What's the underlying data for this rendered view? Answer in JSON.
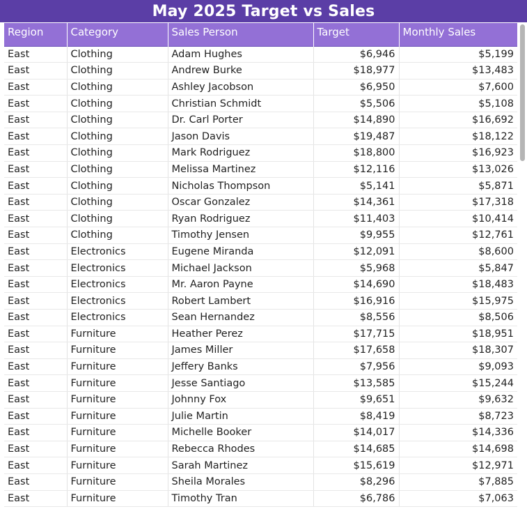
{
  "title": "May 2025 Target vs Sales",
  "columns": [
    "Region",
    "Category",
    "Sales Person",
    "Target",
    "Monthly Sales"
  ],
  "rows": [
    [
      "East",
      "Clothing",
      "Adam Hughes",
      "$6,946",
      "$5,199"
    ],
    [
      "East",
      "Clothing",
      "Andrew Burke",
      "$18,977",
      "$13,483"
    ],
    [
      "East",
      "Clothing",
      "Ashley Jacobson",
      "$6,950",
      "$7,600"
    ],
    [
      "East",
      "Clothing",
      "Christian Schmidt",
      "$5,506",
      "$5,108"
    ],
    [
      "East",
      "Clothing",
      "Dr. Carl Porter",
      "$14,890",
      "$16,692"
    ],
    [
      "East",
      "Clothing",
      "Jason Davis",
      "$19,487",
      "$18,122"
    ],
    [
      "East",
      "Clothing",
      "Mark Rodriguez",
      "$18,800",
      "$16,923"
    ],
    [
      "East",
      "Clothing",
      "Melissa Martinez",
      "$12,116",
      "$13,026"
    ],
    [
      "East",
      "Clothing",
      "Nicholas Thompson",
      "$5,141",
      "$5,871"
    ],
    [
      "East",
      "Clothing",
      "Oscar Gonzalez",
      "$14,361",
      "$17,318"
    ],
    [
      "East",
      "Clothing",
      "Ryan Rodriguez",
      "$11,403",
      "$10,414"
    ],
    [
      "East",
      "Clothing",
      "Timothy Jensen",
      "$9,955",
      "$12,761"
    ],
    [
      "East",
      "Electronics",
      "Eugene Miranda",
      "$12,091",
      "$8,600"
    ],
    [
      "East",
      "Electronics",
      "Michael Jackson",
      "$5,968",
      "$5,847"
    ],
    [
      "East",
      "Electronics",
      "Mr. Aaron Payne",
      "$14,690",
      "$18,483"
    ],
    [
      "East",
      "Electronics",
      "Robert Lambert",
      "$16,916",
      "$15,975"
    ],
    [
      "East",
      "Electronics",
      "Sean Hernandez",
      "$8,556",
      "$8,506"
    ],
    [
      "East",
      "Furniture",
      "Heather Perez",
      "$17,715",
      "$18,951"
    ],
    [
      "East",
      "Furniture",
      "James Miller",
      "$17,658",
      "$18,307"
    ],
    [
      "East",
      "Furniture",
      "Jeffery Banks",
      "$7,956",
      "$9,093"
    ],
    [
      "East",
      "Furniture",
      "Jesse Santiago",
      "$13,585",
      "$15,244"
    ],
    [
      "East",
      "Furniture",
      "Johnny Fox",
      "$9,651",
      "$9,632"
    ],
    [
      "East",
      "Furniture",
      "Julie Martin",
      "$8,419",
      "$8,723"
    ],
    [
      "East",
      "Furniture",
      "Michelle Booker",
      "$14,017",
      "$14,336"
    ],
    [
      "East",
      "Furniture",
      "Rebecca Rhodes",
      "$14,685",
      "$14,698"
    ],
    [
      "East",
      "Furniture",
      "Sarah Martinez",
      "$15,619",
      "$12,971"
    ],
    [
      "East",
      "Furniture",
      "Sheila Morales",
      "$8,296",
      "$7,885"
    ],
    [
      "East",
      "Furniture",
      "Timothy Tran",
      "$6,786",
      "$7,063"
    ]
  ],
  "colors": {
    "title_bg": "#5b3ea6",
    "header_bg": "#9370d6"
  }
}
